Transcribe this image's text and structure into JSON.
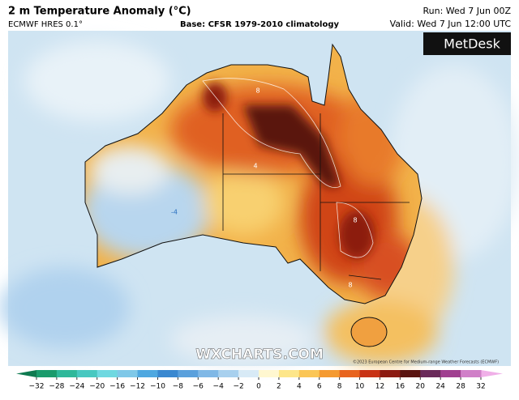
{
  "header": {
    "title": "2 m Temperature Anomaly (°C)",
    "model": "ECMWF HRES 0.1°",
    "base": "Base: CFSR 1979-2010 climatology",
    "run": "Run: Wed 7 Jun 00Z",
    "valid": "Valid: Wed 7 Jun 12:00 UTC"
  },
  "logo": "MetDesk",
  "watermark": "WXCHARTS.COM",
  "copyright": "©2023 European Centre for Medium-range Weather Forecasts (ECMWF)",
  "map": {
    "contour_labels": [
      "8",
      "8",
      "8",
      "4",
      "-4"
    ]
  },
  "legend": {
    "ticks": [
      {
        "value": -32,
        "label": "−32"
      },
      {
        "value": -28,
        "label": "−28"
      },
      {
        "value": -24,
        "label": "−24"
      },
      {
        "value": -20,
        "label": "−20"
      },
      {
        "value": -16,
        "label": "−16"
      },
      {
        "value": -12,
        "label": "−12"
      },
      {
        "value": -10,
        "label": "−10"
      },
      {
        "value": -8,
        "label": "−8"
      },
      {
        "value": -6,
        "label": "−6"
      },
      {
        "value": -4,
        "label": "−4"
      },
      {
        "value": -2,
        "label": "−2"
      },
      0,
      2,
      4,
      6,
      8,
      10,
      12,
      16,
      20,
      24,
      28,
      32
    ],
    "colors": [
      "#1a9b6c",
      "#2fb89a",
      "#48c8c0",
      "#6fd8e0",
      "#7fc8e8",
      "#4fa8e0",
      "#3a88d0",
      "#5aa0dc",
      "#80b8e6",
      "#a8d0ee",
      "#d8eaf6",
      "#fff7d0",
      "#fde68a",
      "#fbc656",
      "#f59a30",
      "#e8641e",
      "#c83214",
      "#8c1a10",
      "#5a1410",
      "#6a2a5a",
      "#a04090",
      "#d080c8"
    ],
    "low_color": "#0f7a50",
    "high_color": "#f0b0e8"
  }
}
